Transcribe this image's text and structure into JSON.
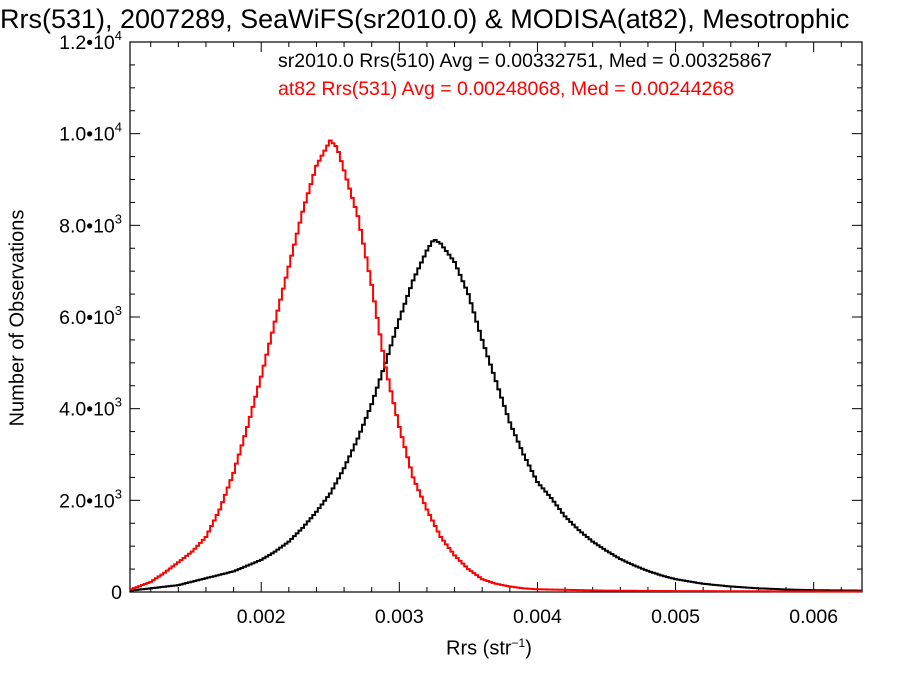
{
  "chart_data": {
    "type": "histogram",
    "title": "Rrs(531), 2007289, SeaWiFS(sr2010.0) & MODISA(at82), Mesotrophic",
    "xlabel": "Rrs (str",
    "xlabel_sup": "−1",
    "ylabel": "Number of Observations",
    "xlim": [
      0.00105,
      0.00635
    ],
    "ylim": [
      0,
      12000
    ],
    "x_ticks": [
      0.002,
      0.003,
      0.004,
      0.005,
      0.006
    ],
    "x_tick_labels": [
      "0.002",
      "0.003",
      "0.004",
      "0.005",
      "0.006"
    ],
    "y_ticks": [
      0,
      2000,
      4000,
      6000,
      8000,
      10000,
      12000
    ],
    "y_tick_labels": [
      {
        "base": "0",
        "exp": ""
      },
      {
        "base": "2.0•10",
        "exp": "3"
      },
      {
        "base": "4.0•10",
        "exp": "3"
      },
      {
        "base": "6.0•10",
        "exp": "3"
      },
      {
        "base": "8.0•10",
        "exp": "3"
      },
      {
        "base": "1.0•10",
        "exp": "4"
      },
      {
        "base": "1.2•10",
        "exp": "4"
      }
    ],
    "series": [
      {
        "name": "sr2010.0 Rrs(510)",
        "legend_text": "sr2010.0 Rrs(510) Avg = 0.00332751, Med = 0.00325867",
        "color": "#000000",
        "points": [
          [
            0.00105,
            30
          ],
          [
            0.0012,
            80
          ],
          [
            0.0014,
            150
          ],
          [
            0.0016,
            300
          ],
          [
            0.0018,
            450
          ],
          [
            0.002,
            700
          ],
          [
            0.0021,
            880
          ],
          [
            0.0022,
            1100
          ],
          [
            0.0023,
            1400
          ],
          [
            0.0024,
            1750
          ],
          [
            0.0025,
            2150
          ],
          [
            0.0026,
            2700
          ],
          [
            0.0027,
            3350
          ],
          [
            0.0028,
            4100
          ],
          [
            0.0029,
            5000
          ],
          [
            0.003,
            5950
          ],
          [
            0.0031,
            6800
          ],
          [
            0.0032,
            7450
          ],
          [
            0.00325,
            7700
          ],
          [
            0.0033,
            7600
          ],
          [
            0.0034,
            7200
          ],
          [
            0.0035,
            6500
          ],
          [
            0.0036,
            5500
          ],
          [
            0.0037,
            4600
          ],
          [
            0.0038,
            3700
          ],
          [
            0.0039,
            3000
          ],
          [
            0.004,
            2400
          ],
          [
            0.0041,
            2050
          ],
          [
            0.0042,
            1650
          ],
          [
            0.0043,
            1350
          ],
          [
            0.0044,
            1100
          ],
          [
            0.0045,
            900
          ],
          [
            0.0046,
            720
          ],
          [
            0.0047,
            580
          ],
          [
            0.0048,
            460
          ],
          [
            0.0049,
            360
          ],
          [
            0.005,
            280
          ],
          [
            0.0052,
            180
          ],
          [
            0.0054,
            120
          ],
          [
            0.0056,
            80
          ],
          [
            0.0058,
            55
          ],
          [
            0.006,
            40
          ],
          [
            0.00635,
            30
          ]
        ]
      },
      {
        "name": "at82 Rrs(531)",
        "legend_text": "at82 Rrs(531) Avg = 0.00248068, Med = 0.00244268",
        "color": "#ff0000",
        "points": [
          [
            0.00105,
            50
          ],
          [
            0.0012,
            220
          ],
          [
            0.0013,
            420
          ],
          [
            0.0014,
            650
          ],
          [
            0.0015,
            880
          ],
          [
            0.0016,
            1200
          ],
          [
            0.0017,
            1800
          ],
          [
            0.0018,
            2600
          ],
          [
            0.0019,
            3600
          ],
          [
            0.002,
            4700
          ],
          [
            0.0021,
            5900
          ],
          [
            0.0022,
            7100
          ],
          [
            0.0023,
            8300
          ],
          [
            0.0024,
            9300
          ],
          [
            0.0025,
            9850
          ],
          [
            0.00255,
            9700
          ],
          [
            0.0026,
            9200
          ],
          [
            0.0027,
            8200
          ],
          [
            0.0028,
            6700
          ],
          [
            0.0029,
            4900
          ],
          [
            0.003,
            3600
          ],
          [
            0.0031,
            2500
          ],
          [
            0.0032,
            1800
          ],
          [
            0.0033,
            1200
          ],
          [
            0.0034,
            800
          ],
          [
            0.0035,
            500
          ],
          [
            0.0036,
            280
          ],
          [
            0.0037,
            180
          ],
          [
            0.0038,
            120
          ],
          [
            0.0039,
            80
          ],
          [
            0.004,
            60
          ],
          [
            0.0045,
            30
          ],
          [
            0.005,
            20
          ],
          [
            0.00635,
            10
          ]
        ]
      }
    ]
  }
}
